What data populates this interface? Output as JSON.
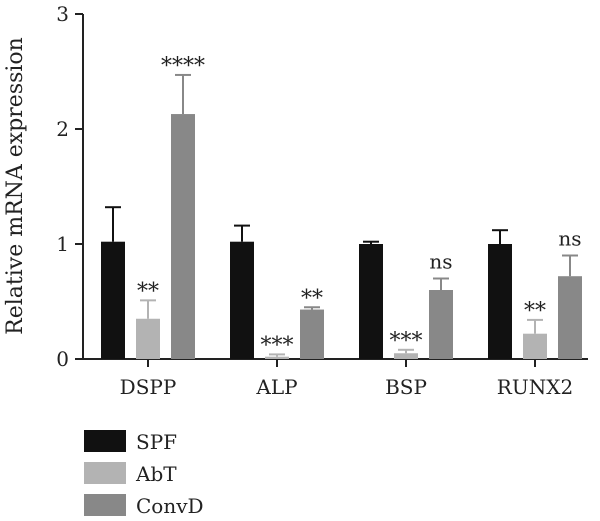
{
  "chart_data": {
    "type": "bar",
    "ylabel": "Relative mRNA expression",
    "ylim": [
      0,
      3
    ],
    "yticks": [
      "0",
      "1",
      "2",
      "3"
    ],
    "categories": [
      "DSPP",
      "ALP",
      "BSP",
      "RUNX2"
    ],
    "series": [
      {
        "name": "SPF",
        "color": "#111111",
        "values": [
          1.02,
          1.02,
          1.0,
          1.0
        ],
        "errors": [
          0.3,
          0.14,
          0.02,
          0.12
        ],
        "annotations": [
          "",
          "",
          "",
          ""
        ]
      },
      {
        "name": "AbT",
        "color": "#b3b3b3",
        "values": [
          0.35,
          0.02,
          0.05,
          0.22
        ],
        "errors": [
          0.16,
          0.02,
          0.03,
          0.12
        ],
        "annotations": [
          "**",
          "***",
          "***",
          "**"
        ]
      },
      {
        "name": "ConvD",
        "color": "#888888",
        "values": [
          2.13,
          0.43,
          0.6,
          0.72
        ],
        "errors": [
          0.34,
          0.02,
          0.1,
          0.18
        ],
        "annotations": [
          "****",
          "**",
          "ns",
          "ns"
        ]
      }
    ],
    "grid": false,
    "legend": "bottom-left"
  }
}
